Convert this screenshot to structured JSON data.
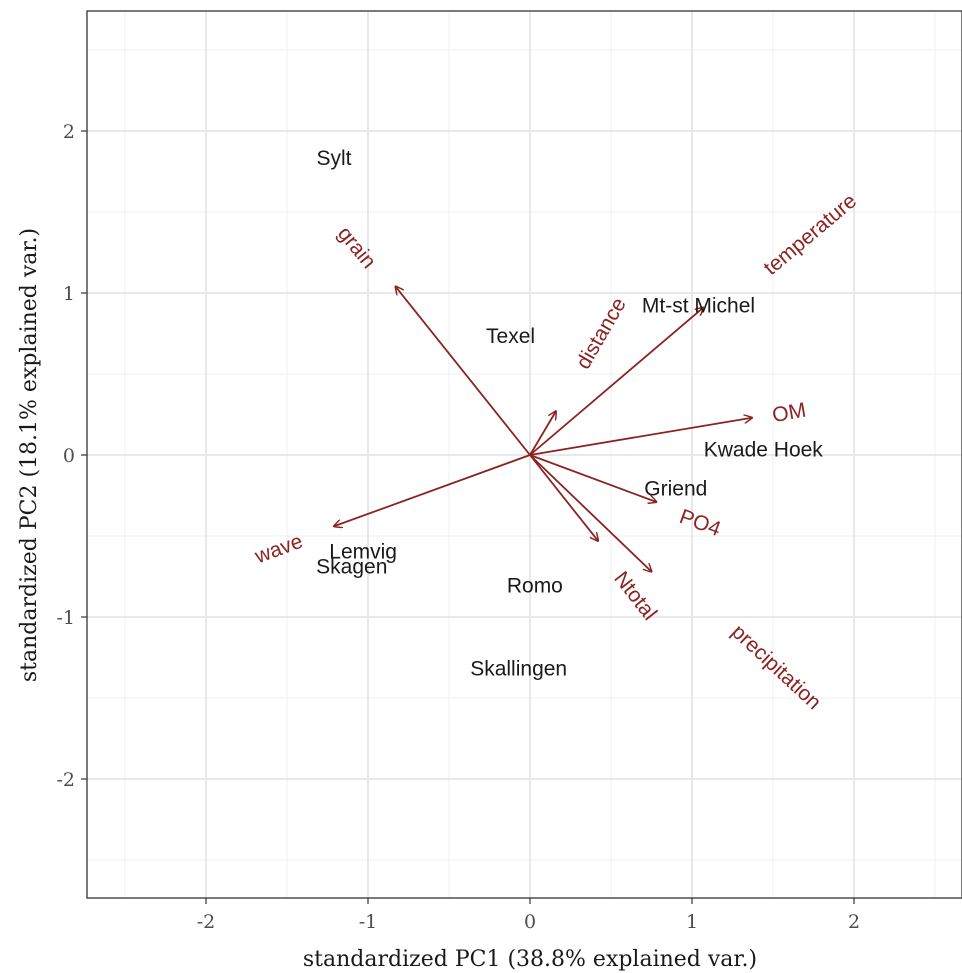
{
  "chart_data": {
    "type": "scatter",
    "subtype": "pca-biplot",
    "xlabel": "standardized PC1 (38.8% explained var.)",
    "ylabel": "standardized PC2 (18.1% explained var.)",
    "xlim": [
      -2.7,
      2.7
    ],
    "ylim": [
      -2.7,
      2.75
    ],
    "x_ticks": [
      -2,
      -1,
      0,
      1,
      2
    ],
    "y_ticks": [
      -2,
      -1,
      0,
      1,
      2
    ],
    "grid": true,
    "arrow_color": "#8b2323",
    "points": [
      {
        "label": "Sylt",
        "x": -1.21,
        "y": 1.83
      },
      {
        "label": "Texel",
        "x": -0.12,
        "y": 0.73
      },
      {
        "label": "Mt-st Michel",
        "x": 1.04,
        "y": 0.92
      },
      {
        "label": "Kwade Hoek",
        "x": 1.44,
        "y": 0.03
      },
      {
        "label": "Griend",
        "x": 0.9,
        "y": -0.21
      },
      {
        "label": "Lemvig",
        "x": -1.03,
        "y": -0.6
      },
      {
        "label": "Skagen",
        "x": -1.1,
        "y": -0.69
      },
      {
        "label": "Romo",
        "x": 0.03,
        "y": -0.81
      },
      {
        "label": "Skallingen",
        "x": -0.07,
        "y": -1.32
      }
    ],
    "vectors": [
      {
        "label": "grain",
        "x": -0.83,
        "y": 1.04,
        "label_x": -1.07,
        "label_y": 1.28,
        "label_angle": 51
      },
      {
        "label": "distance",
        "x": 0.16,
        "y": 0.27,
        "label_x": 0.44,
        "label_y": 0.75,
        "label_angle": -60
      },
      {
        "label": "temperature",
        "x": 1.07,
        "y": 0.91,
        "label_x": 1.73,
        "label_y": 1.36,
        "label_angle": -40
      },
      {
        "label": "OM",
        "x": 1.37,
        "y": 0.23,
        "label_x": 1.6,
        "label_y": 0.26,
        "label_angle": -10
      },
      {
        "label": "PO4",
        "x": 0.78,
        "y": -0.29,
        "label_x": 1.05,
        "label_y": -0.42,
        "label_angle": 20
      },
      {
        "label": "Ntotal",
        "x": 0.42,
        "y": -0.53,
        "label_x": 0.65,
        "label_y": -0.87,
        "label_angle": 52
      },
      {
        "label": "precipitation",
        "x": 0.75,
        "y": -0.72,
        "label_x": 1.52,
        "label_y": -1.31,
        "label_angle": 43
      },
      {
        "label": "wave",
        "x": -1.21,
        "y": -0.44,
        "label_x": -1.55,
        "label_y": -0.58,
        "label_angle": -20
      }
    ]
  }
}
